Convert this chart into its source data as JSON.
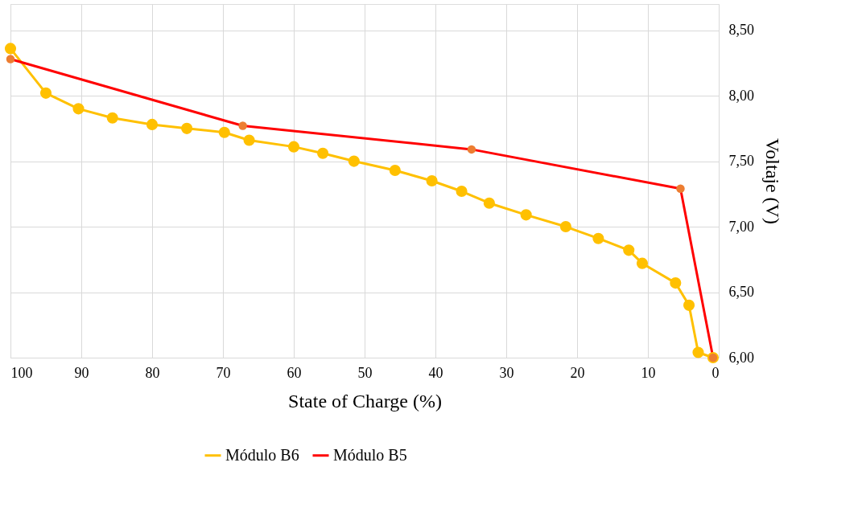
{
  "chart_data": {
    "type": "line",
    "xlabel": "State of Charge (%)",
    "ylabel": "Voltaje (V)",
    "xlim": [
      100,
      0
    ],
    "xticks": [
      100,
      90,
      80,
      70,
      60,
      50,
      40,
      30,
      20,
      10,
      0
    ],
    "ylim": [
      6,
      8.7
    ],
    "yticks": [
      {
        "value": 6,
        "label": "6,00"
      },
      {
        "value": 6.5,
        "label": "6,50"
      },
      {
        "value": 7,
        "label": "7,00"
      },
      {
        "value": 7.5,
        "label": "7,50"
      },
      {
        "value": 8,
        "label": "8,00"
      },
      {
        "value": 8.5,
        "label": "8,50"
      }
    ],
    "grid": true,
    "legend": "bottom",
    "marker": "circle",
    "line_style": "solid",
    "series": [
      {
        "name": "Módulo B6",
        "color": "#ffc000",
        "x": [
          100,
          95,
          90.4,
          85.6,
          80,
          75.1,
          69.8,
          66.3,
          60,
          55.9,
          51.5,
          45.7,
          40.5,
          36.3,
          32.4,
          27.2,
          21.6,
          17,
          12.7,
          10.8,
          6.1,
          4.2,
          2.9,
          0.8
        ],
        "values": [
          8.36,
          8.02,
          7.9,
          7.83,
          7.78,
          7.75,
          7.72,
          7.66,
          7.61,
          7.56,
          7.5,
          7.43,
          7.35,
          7.27,
          7.18,
          7.09,
          7.0,
          6.91,
          6.82,
          6.72,
          6.57,
          6.4,
          6.04,
          6.0
        ]
      },
      {
        "name": "Módulo B5",
        "color": "#ff0000",
        "colors": [
          "#ed7d31",
          "#ed7d31",
          "#ed7d31",
          "#ed7d31",
          "#ed7d31"
        ],
        "x": [
          100,
          67.2,
          34.9,
          5.4,
          0.8
        ],
        "values": [
          8.28,
          7.77,
          7.59,
          7.29,
          6.0
        ]
      }
    ]
  }
}
